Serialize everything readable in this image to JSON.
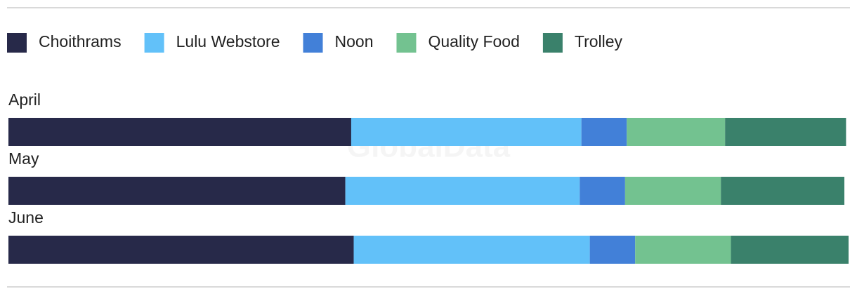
{
  "chart_data": {
    "type": "stacked-bar-horizontal",
    "categories": [
      "April",
      "May",
      "June"
    ],
    "series": [
      {
        "name": "Choithrams",
        "color": "#272949",
        "values": [
          40.8,
          40.1,
          41.1
        ]
      },
      {
        "name": "Lulu Webstore",
        "color": "#62c1f9",
        "values": [
          27.4,
          27.9,
          28.1
        ]
      },
      {
        "name": "Noon",
        "color": "#4280d8",
        "values": [
          5.4,
          5.4,
          5.4
        ]
      },
      {
        "name": "Quality Food",
        "color": "#73c290",
        "values": [
          11.7,
          11.4,
          11.4
        ]
      },
      {
        "name": "Trolley",
        "color": "#3a816b",
        "values": [
          14.4,
          14.7,
          14.0
        ]
      }
    ],
    "xlim": [
      0,
      100
    ],
    "watermark": "GlobalData"
  }
}
